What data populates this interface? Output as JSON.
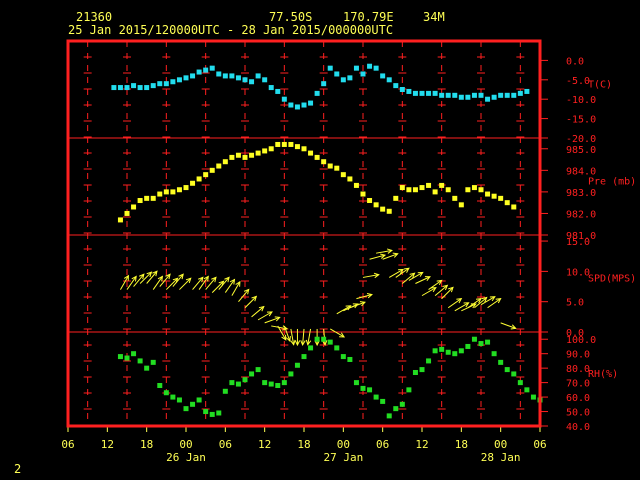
{
  "header": {
    "station": "21360",
    "lat": "77.50S",
    "lon": "170.79E",
    "elev": "34M",
    "range": "25 Jan 2015/120000UTC - 28 Jan 2015/000000UTC"
  },
  "footer": {
    "page": "2"
  },
  "colors": {
    "frame": "#ff2020",
    "grid": "#ff2020",
    "text": "#ffff55",
    "temp": "#22ddee",
    "pres": "#ffff22",
    "wind": "#ffff33",
    "rh": "#22dd22"
  },
  "chart_data": {
    "type": "scatter",
    "x_unit": "hours since 25 Jan 2015 06 UTC",
    "xlim": [
      0,
      72
    ],
    "x_ticks": [
      "06",
      "12",
      "18",
      "00",
      "06",
      "12",
      "18",
      "00",
      "06",
      "12",
      "18",
      "00",
      "06"
    ],
    "x_dates": [
      {
        "h": 18,
        "label": "26 Jan"
      },
      {
        "h": 42,
        "label": "27 Jan"
      },
      {
        "h": 66,
        "label": "28 Jan"
      }
    ],
    "panels": [
      {
        "key": "temp",
        "label": "T(C)",
        "ylim": [
          -20,
          5
        ],
        "ticks": [
          "0.0",
          "-5.0",
          "-10.0",
          "-15.0",
          "-20.0"
        ],
        "tick_values": [
          0,
          -5,
          -10,
          -15,
          -20
        ],
        "points": [
          [
            7,
            -7
          ],
          [
            8,
            -7
          ],
          [
            9,
            -7
          ],
          [
            10,
            -6.5
          ],
          [
            11,
            -7
          ],
          [
            12,
            -7
          ],
          [
            13,
            -6.5
          ],
          [
            14,
            -6
          ],
          [
            15,
            -6
          ],
          [
            16,
            -5.5
          ],
          [
            17,
            -5
          ],
          [
            18,
            -4.5
          ],
          [
            19,
            -4
          ],
          [
            20,
            -3
          ],
          [
            21,
            -2.5
          ],
          [
            22,
            -2
          ],
          [
            23,
            -3.5
          ],
          [
            24,
            -4
          ],
          [
            25,
            -4
          ],
          [
            26,
            -4.5
          ],
          [
            27,
            -5
          ],
          [
            28,
            -5.5
          ],
          [
            29,
            -4
          ],
          [
            30,
            -5
          ],
          [
            31,
            -7
          ],
          [
            32,
            -8
          ],
          [
            33,
            -10
          ],
          [
            34,
            -11.5
          ],
          [
            35,
            -12
          ],
          [
            36,
            -11.5
          ],
          [
            37,
            -11
          ],
          [
            38,
            -8.5
          ],
          [
            39,
            -6
          ],
          [
            40,
            -2
          ],
          [
            41,
            -3.5
          ],
          [
            42,
            -5
          ],
          [
            43,
            -4.5
          ],
          [
            44,
            -2
          ],
          [
            45,
            -3.5
          ],
          [
            46,
            -1.5
          ],
          [
            47,
            -2
          ],
          [
            48,
            -4
          ],
          [
            49,
            -5
          ],
          [
            50,
            -6.5
          ],
          [
            51,
            -7.5
          ],
          [
            52,
            -8
          ],
          [
            53,
            -8.5
          ],
          [
            54,
            -8.5
          ],
          [
            55,
            -8.5
          ],
          [
            56,
            -8.5
          ],
          [
            57,
            -9
          ],
          [
            58,
            -9
          ],
          [
            59,
            -9
          ],
          [
            60,
            -9.5
          ],
          [
            61,
            -9.5
          ],
          [
            62,
            -9
          ],
          [
            63,
            -9
          ],
          [
            64,
            -10
          ],
          [
            65,
            -9.5
          ],
          [
            66,
            -9
          ],
          [
            67,
            -9
          ],
          [
            68,
            -9
          ],
          [
            69,
            -8.5
          ],
          [
            70,
            -8
          ]
        ]
      },
      {
        "key": "pres",
        "label": "Pre (mb)",
        "ylim": [
          981,
          985.5
        ],
        "ticks": [
          "985.0",
          "984.0",
          "983.0",
          "982.0",
          "981.0"
        ],
        "tick_values": [
          985,
          984,
          983,
          982,
          981
        ],
        "points": [
          [
            8,
            981.7
          ],
          [
            9,
            982.0
          ],
          [
            10,
            982.3
          ],
          [
            11,
            982.6
          ],
          [
            12,
            982.7
          ],
          [
            13,
            982.7
          ],
          [
            14,
            982.9
          ],
          [
            15,
            983.0
          ],
          [
            16,
            983.0
          ],
          [
            17,
            983.1
          ],
          [
            18,
            983.2
          ],
          [
            19,
            983.4
          ],
          [
            20,
            983.6
          ],
          [
            21,
            983.8
          ],
          [
            22,
            984.0
          ],
          [
            23,
            984.2
          ],
          [
            24,
            984.4
          ],
          [
            25,
            984.6
          ],
          [
            26,
            984.7
          ],
          [
            27,
            984.6
          ],
          [
            28,
            984.7
          ],
          [
            29,
            984.8
          ],
          [
            30,
            984.9
          ],
          [
            31,
            985.0
          ],
          [
            32,
            985.2
          ],
          [
            33,
            985.2
          ],
          [
            34,
            985.2
          ],
          [
            35,
            985.1
          ],
          [
            36,
            985.0
          ],
          [
            37,
            984.8
          ],
          [
            38,
            984.6
          ],
          [
            39,
            984.4
          ],
          [
            40,
            984.2
          ],
          [
            41,
            984.1
          ],
          [
            42,
            983.8
          ],
          [
            43,
            983.6
          ],
          [
            44,
            983.3
          ],
          [
            45,
            982.9
          ],
          [
            46,
            982.6
          ],
          [
            47,
            982.4
          ],
          [
            48,
            982.2
          ],
          [
            49,
            982.1
          ],
          [
            50,
            982.7
          ],
          [
            51,
            983.2
          ],
          [
            52,
            983.1
          ],
          [
            53,
            983.1
          ],
          [
            54,
            983.2
          ],
          [
            55,
            983.3
          ],
          [
            56,
            983.0
          ],
          [
            57,
            983.3
          ],
          [
            58,
            983.1
          ],
          [
            59,
            982.7
          ],
          [
            60,
            982.4
          ],
          [
            61,
            983.1
          ],
          [
            62,
            983.2
          ],
          [
            63,
            983.1
          ],
          [
            64,
            982.9
          ],
          [
            65,
            982.8
          ],
          [
            66,
            982.7
          ],
          [
            67,
            982.5
          ],
          [
            68,
            982.3
          ]
        ]
      },
      {
        "key": "wind",
        "label": "SPD(MPS)",
        "ylim": [
          0,
          16
        ],
        "ticks": [
          "15.0",
          "10.0",
          "5.0",
          "0.0"
        ],
        "tick_values": [
          15,
          10,
          5,
          0
        ],
        "points": [
          [
            8,
            7
          ],
          [
            9,
            7
          ],
          [
            10,
            7.5
          ],
          [
            11,
            8
          ],
          [
            12,
            8
          ],
          [
            13,
            7
          ],
          [
            14,
            7.5
          ],
          [
            15,
            7
          ],
          [
            16,
            7.5
          ],
          [
            17,
            7
          ],
          [
            19,
            7
          ],
          [
            20,
            7
          ],
          [
            21,
            7
          ],
          [
            22,
            6.5
          ],
          [
            23,
            7
          ],
          [
            24,
            6.5
          ],
          [
            25,
            6
          ],
          [
            26,
            5
          ],
          [
            27,
            4
          ],
          [
            28,
            2.5
          ],
          [
            29,
            2
          ],
          [
            30,
            1.5
          ],
          [
            31,
            1
          ],
          [
            32,
            1
          ],
          [
            33,
            1
          ],
          [
            34,
            0.5
          ],
          [
            35,
            0.5
          ],
          [
            36,
            0.5
          ],
          [
            37,
            0.5
          ],
          [
            38,
            0.5
          ],
          [
            39,
            0.5
          ],
          [
            40,
            0.5
          ],
          [
            41,
            3
          ],
          [
            42,
            3.5
          ],
          [
            43,
            4
          ],
          [
            44,
            5.5
          ],
          [
            45,
            9
          ],
          [
            46,
            12
          ],
          [
            47,
            13
          ],
          [
            48,
            12
          ],
          [
            49,
            9
          ],
          [
            50,
            9
          ],
          [
            51,
            8
          ],
          [
            52,
            8.5
          ],
          [
            53,
            8
          ],
          [
            54,
            6
          ],
          [
            55,
            7
          ],
          [
            56,
            6
          ],
          [
            57,
            5.5
          ],
          [
            58,
            4
          ],
          [
            59,
            3.5
          ],
          [
            60,
            3.5
          ],
          [
            61,
            4
          ],
          [
            62,
            4
          ],
          [
            63,
            4.5
          ],
          [
            64,
            4
          ],
          [
            66,
            1.5
          ]
        ],
        "dirs": [
          [
            8,
            -60
          ],
          [
            9,
            -55
          ],
          [
            10,
            -50
          ],
          [
            11,
            -45
          ],
          [
            12,
            -50
          ],
          [
            13,
            -55
          ],
          [
            14,
            -50
          ],
          [
            15,
            -45
          ],
          [
            16,
            -50
          ],
          [
            17,
            -45
          ],
          [
            19,
            -50
          ],
          [
            20,
            -55
          ],
          [
            21,
            -50
          ],
          [
            22,
            -45
          ],
          [
            23,
            -50
          ],
          [
            24,
            -55
          ],
          [
            25,
            -60
          ],
          [
            26,
            -50
          ],
          [
            27,
            -45
          ],
          [
            28,
            -40
          ],
          [
            29,
            -30
          ],
          [
            30,
            -20
          ],
          [
            31,
            10
          ],
          [
            32,
            60
          ],
          [
            33,
            70
          ],
          [
            34,
            80
          ],
          [
            35,
            90
          ],
          [
            36,
            95
          ],
          [
            37,
            100
          ],
          [
            38,
            90
          ],
          [
            39,
            85
          ],
          [
            40,
            30
          ],
          [
            41,
            -30
          ],
          [
            42,
            -25
          ],
          [
            43,
            -20
          ],
          [
            44,
            -15
          ],
          [
            45,
            -10
          ],
          [
            46,
            -15
          ],
          [
            47,
            -10
          ],
          [
            48,
            -20
          ],
          [
            49,
            -30
          ],
          [
            50,
            -35
          ],
          [
            51,
            -40
          ],
          [
            52,
            -30
          ],
          [
            53,
            -25
          ],
          [
            54,
            -30
          ],
          [
            55,
            -35
          ],
          [
            56,
            -40
          ],
          [
            57,
            -45
          ],
          [
            58,
            -35
          ],
          [
            59,
            -30
          ],
          [
            60,
            -25
          ],
          [
            61,
            -35
          ],
          [
            62,
            -40
          ],
          [
            63,
            -30
          ],
          [
            64,
            -35
          ],
          [
            66,
            20
          ]
        ]
      },
      {
        "key": "rh",
        "label": "RH(%)",
        "ylim": [
          40,
          105
        ],
        "ticks": [
          "100.0",
          "90.0",
          "80.0",
          "70.0",
          "60.0",
          "50.0",
          "40.0"
        ],
        "tick_values": [
          100,
          90,
          80,
          70,
          60,
          50,
          40
        ],
        "points": [
          [
            8,
            88
          ],
          [
            9,
            87
          ],
          [
            10,
            90
          ],
          [
            11,
            85
          ],
          [
            12,
            80
          ],
          [
            13,
            84
          ],
          [
            14,
            68
          ],
          [
            15,
            63
          ],
          [
            16,
            60
          ],
          [
            17,
            58
          ],
          [
            18,
            52
          ],
          [
            19,
            55
          ],
          [
            20,
            58
          ],
          [
            21,
            50
          ],
          [
            22,
            48
          ],
          [
            23,
            49
          ],
          [
            24,
            64
          ],
          [
            25,
            70
          ],
          [
            26,
            69
          ],
          [
            27,
            72
          ],
          [
            28,
            76
          ],
          [
            29,
            79
          ],
          [
            30,
            70
          ],
          [
            31,
            69
          ],
          [
            32,
            68
          ],
          [
            33,
            70
          ],
          [
            34,
            76
          ],
          [
            35,
            82
          ],
          [
            36,
            88
          ],
          [
            37,
            94
          ],
          [
            38,
            100
          ],
          [
            39,
            100
          ],
          [
            40,
            98
          ],
          [
            41,
            94
          ],
          [
            42,
            88
          ],
          [
            43,
            86
          ],
          [
            44,
            70
          ],
          [
            45,
            66
          ],
          [
            46,
            65
          ],
          [
            47,
            60
          ],
          [
            48,
            57
          ],
          [
            49,
            47
          ],
          [
            50,
            52
          ],
          [
            51,
            55
          ],
          [
            52,
            65
          ],
          [
            53,
            77
          ],
          [
            54,
            79
          ],
          [
            55,
            85
          ],
          [
            56,
            92
          ],
          [
            57,
            93
          ],
          [
            58,
            91
          ],
          [
            59,
            90
          ],
          [
            60,
            92
          ],
          [
            61,
            95
          ],
          [
            62,
            100
          ],
          [
            63,
            97
          ],
          [
            64,
            98
          ],
          [
            65,
            90
          ],
          [
            66,
            84
          ],
          [
            67,
            79
          ],
          [
            68,
            76
          ],
          [
            69,
            70
          ],
          [
            70,
            65
          ],
          [
            71,
            60
          ],
          [
            72,
            58
          ]
        ]
      }
    ]
  }
}
